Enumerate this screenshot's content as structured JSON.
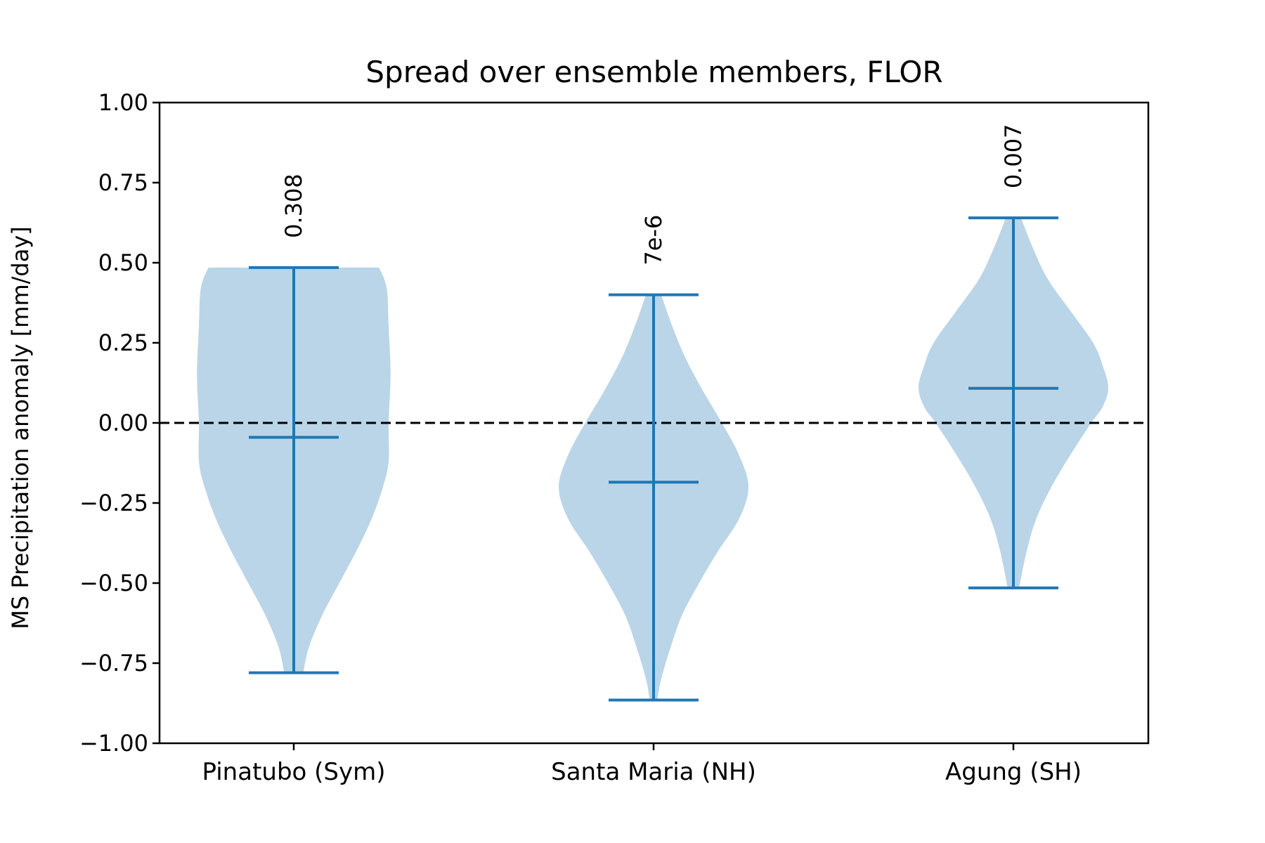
{
  "chart_data": {
    "type": "violin",
    "title": "Spread over ensemble members, FLOR",
    "xlabel": "",
    "ylabel": "MS Precipitation anomaly [mm/day]",
    "ylim": [
      -1.0,
      1.0
    ],
    "yticks": [
      "−1.00",
      "−0.75",
      "−0.50",
      "−0.25",
      "0.00",
      "0.25",
      "0.50",
      "0.75",
      "1.00"
    ],
    "ytick_values": [
      -1.0,
      -0.75,
      -0.5,
      -0.25,
      0.0,
      0.25,
      0.5,
      0.75,
      1.0
    ],
    "grid": false,
    "reference_line": {
      "y": 0.0,
      "style": "dashed",
      "color": "#000000"
    },
    "fill_color": "#bad5e8",
    "line_color": "#1f77b4",
    "categories": [
      "Pinatubo (Sym)",
      "Santa Maria (NH)",
      "Agung (SH)"
    ],
    "violins": [
      {
        "category": "Pinatubo (Sym)",
        "max": 0.485,
        "min": -0.78,
        "mean": -0.045,
        "annotation": "0.308",
        "density": [
          [
            0.485,
            0.45
          ],
          [
            0.42,
            0.49
          ],
          [
            0.3,
            0.5
          ],
          [
            0.15,
            0.51
          ],
          [
            0.0,
            0.5
          ],
          [
            -0.12,
            0.5
          ],
          [
            -0.2,
            0.47
          ],
          [
            -0.3,
            0.41
          ],
          [
            -0.4,
            0.33
          ],
          [
            -0.5,
            0.24
          ],
          [
            -0.6,
            0.15
          ],
          [
            -0.7,
            0.08
          ],
          [
            -0.78,
            0.05
          ]
        ]
      },
      {
        "category": "Santa Maria (NH)",
        "max": 0.4,
        "min": -0.865,
        "mean": -0.185,
        "annotation": "7e-6",
        "density": [
          [
            0.4,
            0.04
          ],
          [
            0.3,
            0.1
          ],
          [
            0.2,
            0.17
          ],
          [
            0.1,
            0.26
          ],
          [
            0.0,
            0.36
          ],
          [
            -0.1,
            0.45
          ],
          [
            -0.2,
            0.5
          ],
          [
            -0.3,
            0.45
          ],
          [
            -0.4,
            0.34
          ],
          [
            -0.5,
            0.24
          ],
          [
            -0.6,
            0.15
          ],
          [
            -0.7,
            0.09
          ],
          [
            -0.8,
            0.04
          ],
          [
            -0.865,
            0.02
          ]
        ]
      },
      {
        "category": "Agung (SH)",
        "max": 0.64,
        "min": -0.515,
        "mean": 0.108,
        "annotation": "0.007",
        "density": [
          [
            0.64,
            0.04
          ],
          [
            0.55,
            0.1
          ],
          [
            0.45,
            0.18
          ],
          [
            0.35,
            0.3
          ],
          [
            0.25,
            0.42
          ],
          [
            0.18,
            0.47
          ],
          [
            0.11,
            0.5
          ],
          [
            0.05,
            0.47
          ],
          [
            0.0,
            0.41
          ],
          [
            -0.1,
            0.3
          ],
          [
            -0.2,
            0.2
          ],
          [
            -0.3,
            0.12
          ],
          [
            -0.4,
            0.07
          ],
          [
            -0.515,
            0.03
          ]
        ]
      }
    ]
  }
}
